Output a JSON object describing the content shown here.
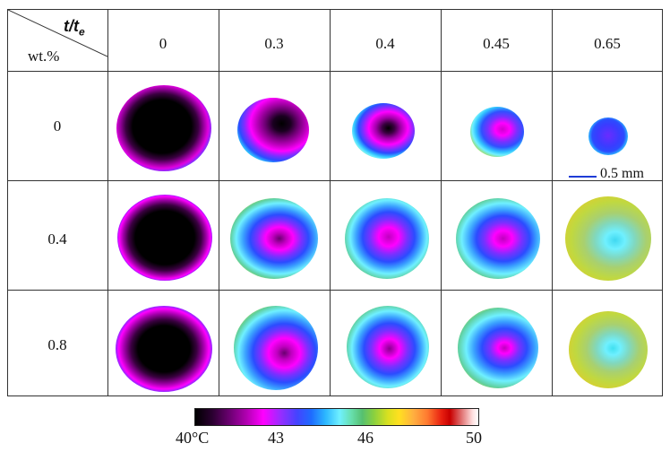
{
  "table": {
    "corner_time_label": "t/t",
    "corner_time_sub": "e",
    "corner_wt_label": "wt.%",
    "columns": [
      "0",
      "0.3",
      "0.4",
      "0.45",
      "0.65"
    ],
    "rows": [
      "0",
      "0.4",
      "0.8"
    ]
  },
  "scale_bar": {
    "label": "0.5 mm",
    "color": "#1e3cd6"
  },
  "colorbar": {
    "min_label": "40°C",
    "mid1_label": "43",
    "mid2_label": "46",
    "max_label": "50"
  },
  "colors": {
    "hot": "#e01010",
    "cold": "#000000",
    "magenta": "#ff00ff",
    "blue": "#2b4cff",
    "cyan": "#5ff0ff",
    "yellow_green": "#c8d840"
  }
}
